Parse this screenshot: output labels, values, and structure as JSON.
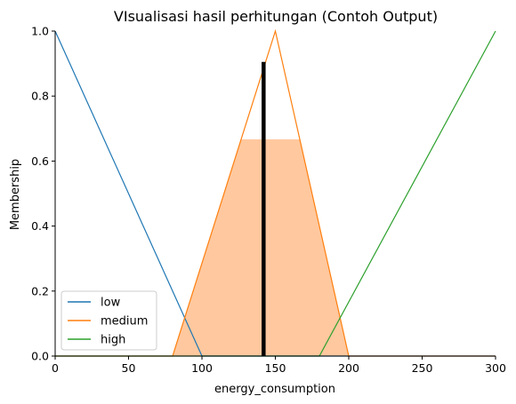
{
  "chart_data": {
    "type": "line",
    "title": "VIsualisasi hasil perhitungan (Contoh Output)",
    "xlabel": "energy_consumption",
    "ylabel": "Membership",
    "xlim": [
      0,
      300
    ],
    "ylim": [
      0,
      1
    ],
    "xticks": [
      "0",
      "50",
      "100",
      "150",
      "200",
      "250",
      "300"
    ],
    "yticks": [
      "0.0",
      "0.2",
      "0.4",
      "0.6",
      "0.8",
      "1.0"
    ],
    "series": [
      {
        "name": "low",
        "color": "#1f77b4",
        "x": [
          0,
          100,
          300
        ],
        "y": [
          1,
          0,
          0
        ]
      },
      {
        "name": "medium",
        "color": "#ff7f0e",
        "x": [
          0,
          80,
          150,
          200,
          300
        ],
        "y": [
          0,
          0,
          1,
          0,
          0
        ]
      },
      {
        "name": "high",
        "color": "#2ca02c",
        "x": [
          0,
          180,
          300
        ],
        "y": [
          0,
          0,
          1
        ]
      }
    ],
    "aggregated_area": {
      "color": "#ffc89e",
      "x": [
        80,
        126.7,
        166.7,
        200,
        300
      ],
      "y": [
        0,
        0.667,
        0.667,
        0,
        0
      ]
    },
    "defuzzified_line": {
      "x": 142,
      "y": 0.905,
      "color": "#000000"
    },
    "legend_position": "lower-left",
    "grid": false
  }
}
